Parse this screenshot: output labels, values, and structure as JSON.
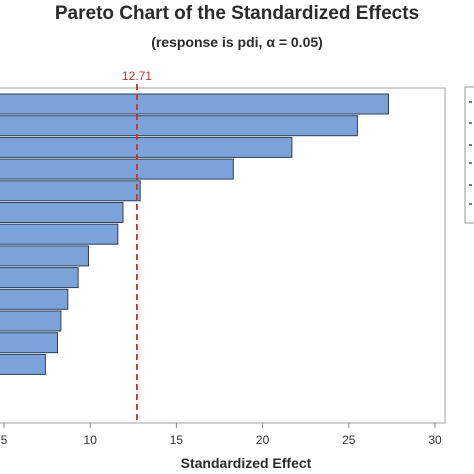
{
  "chart_data": {
    "type": "bar",
    "orientation": "horizontal",
    "title": "Pareto Chart of the Standardized Effects",
    "subtitle": "(response is pdi, α = 0.05)",
    "xlabel": "Standardized Effect",
    "ylabel": "",
    "xlim": [
      5,
      30
    ],
    "xticks": [
      5,
      10,
      15,
      20,
      25,
      30
    ],
    "values": [
      27.3,
      25.5,
      21.7,
      18.3,
      12.9,
      11.9,
      11.6,
      9.9,
      9.3,
      8.7,
      8.3,
      8.1,
      7.4
    ],
    "reference_line": {
      "value": 12.71,
      "label": "12.71",
      "color": "#c0392b"
    },
    "bar_color": "#7ba3d9",
    "bar_edge_color": "#2f3f5a",
    "grid": false,
    "legend": "right"
  }
}
